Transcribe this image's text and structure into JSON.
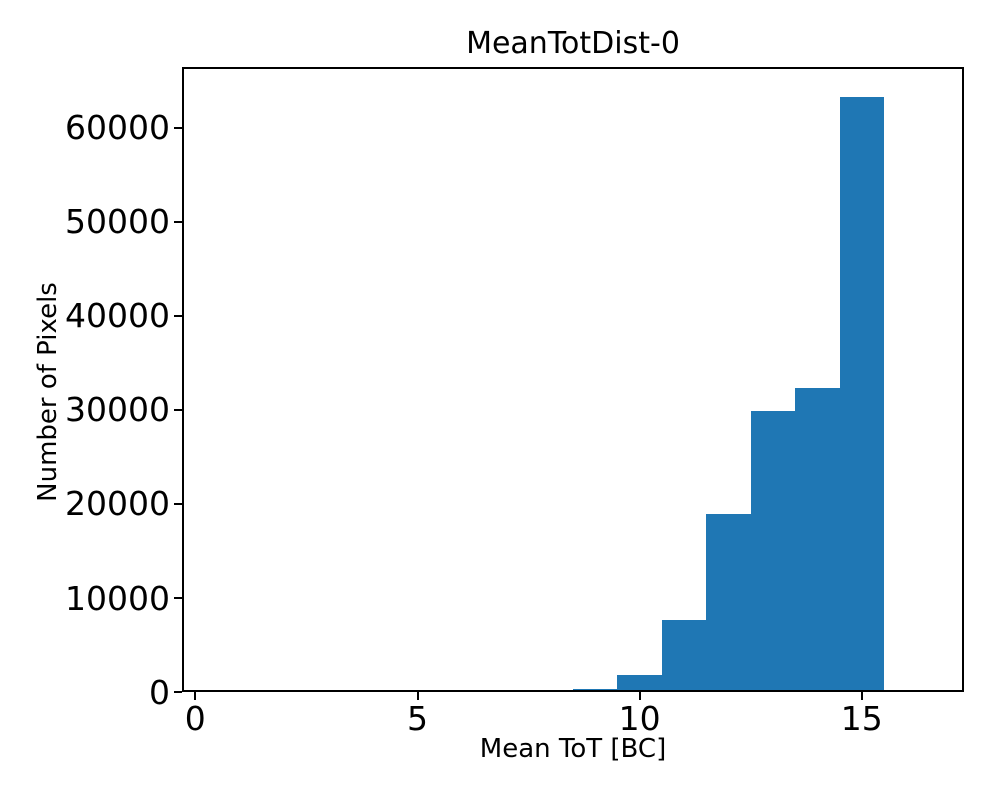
{
  "chart_data": {
    "type": "bar",
    "subtype": "histogram",
    "title": "MeanTotDist-0",
    "xlabel": "Mean ToT [BC]",
    "ylabel": "Number of Pixels",
    "bin_edges": [
      8.5,
      9.5,
      10.5,
      11.5,
      12.5,
      13.5,
      14.5,
      15.5
    ],
    "counts": [
      350,
      1800,
      7650,
      18950,
      29900,
      32350,
      63300
    ],
    "xticks": [
      0,
      5,
      10,
      15
    ],
    "yticks": [
      0,
      10000,
      20000,
      30000,
      40000,
      50000,
      60000
    ],
    "xlim": [
      -0.3,
      17.3
    ],
    "ylim": [
      0,
      66470
    ],
    "bar_color": "#1f77b4",
    "axis_color": "#000000",
    "background_color": "#ffffff",
    "grid": false,
    "legend_position": "none"
  }
}
